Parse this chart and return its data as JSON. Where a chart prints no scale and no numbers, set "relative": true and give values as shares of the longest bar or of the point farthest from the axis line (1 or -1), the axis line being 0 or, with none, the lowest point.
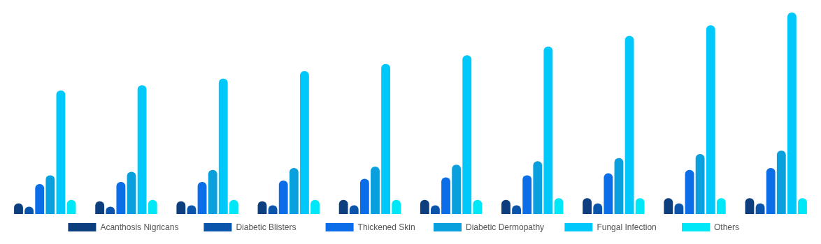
{
  "chart_data": {
    "type": "bar",
    "relative": true,
    "legend": "bottom",
    "categories": [
      null,
      null,
      null,
      null,
      null,
      null,
      null,
      null,
      null,
      null
    ],
    "series": [
      {
        "name": "Acanthosis Nigricans",
        "color": "#0d3f7f",
        "values": [
          0.053,
          0.063,
          0.063,
          0.063,
          0.07,
          0.07,
          0.07,
          0.079,
          0.079,
          0.079
        ]
      },
      {
        "name": "Diabetic Blisters",
        "color": "#0a55ab",
        "values": [
          0.036,
          0.036,
          0.043,
          0.043,
          0.043,
          0.043,
          0.043,
          0.053,
          0.053,
          0.053
        ]
      },
      {
        "name": "Thickened Skin",
        "color": "#0b6ee8",
        "values": [
          0.149,
          0.159,
          0.159,
          0.166,
          0.175,
          0.182,
          0.192,
          0.202,
          0.219,
          0.228
        ]
      },
      {
        "name": "Diabetic Dermopathy",
        "color": "#0aa0dd",
        "values": [
          0.192,
          0.209,
          0.219,
          0.228,
          0.235,
          0.245,
          0.262,
          0.278,
          0.298,
          0.315
        ]
      },
      {
        "name": "Fungal Infection",
        "color": "#00c8fa",
        "values": [
          0.613,
          0.639,
          0.672,
          0.709,
          0.745,
          0.788,
          0.831,
          0.884,
          0.937,
          1
        ]
      },
      {
        "name": "Others",
        "color": "#00e8f7",
        "values": [
          0.07,
          0.07,
          0.07,
          0.07,
          0.07,
          0.07,
          0.079,
          0.079,
          0.079,
          0.079
        ]
      }
    ]
  }
}
